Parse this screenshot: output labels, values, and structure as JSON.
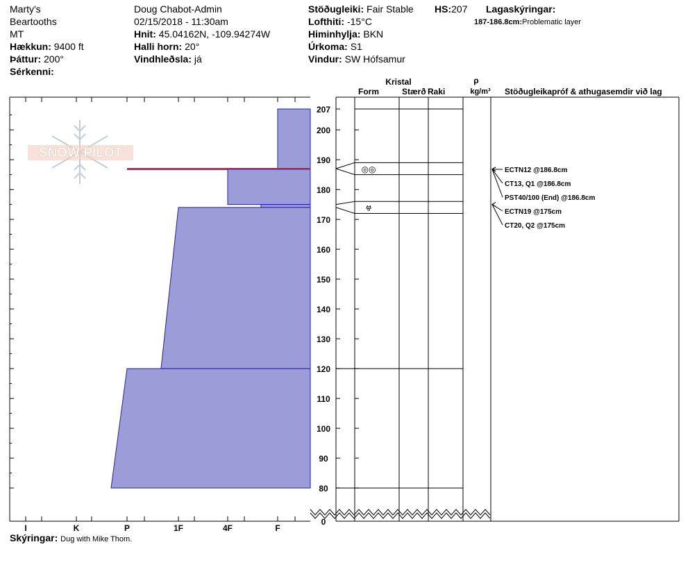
{
  "header": {
    "col1": [
      "Marty's",
      "Beartooths",
      "MT"
    ],
    "elevation": {
      "label": "Hækkun:",
      "value": "9400 ft"
    },
    "aspect": {
      "label": "Þáttur:",
      "value": "200°"
    },
    "specifics": {
      "label": "Sérkenni:",
      "value": ""
    },
    "observer": "Doug Chabot-Admin",
    "datetime": "02/15/2018 - 11:30am",
    "coords": {
      "label": "Hnit:",
      "value": "45.04162N, -109.94274W"
    },
    "slope": {
      "label": "Halli horn:",
      "value": "20°"
    },
    "wind_loading": {
      "label": "Vindhleðsla:",
      "value": "já"
    },
    "stability": {
      "label": "Stöðugleiki:",
      "value": "Fair Stable"
    },
    "hs": {
      "label": "HS:",
      "value": "207"
    },
    "air_temp": {
      "label": "Lofthiti:",
      "value": "-15°C"
    },
    "sky": {
      "label": "Himinhylja:",
      "value": "BKN"
    },
    "precip": {
      "label": "Úrkoma:",
      "value": "S1"
    },
    "wind": {
      "label": "Vindur:",
      "value": "SW Hófsamur"
    },
    "layer_notes": {
      "label": "Lagaskýringar:",
      "range": "187-186.8cm:",
      "text": "Problematic layer"
    },
    "comments": {
      "label": "Skýringar:",
      "value": "Dug with Mike Thom."
    }
  },
  "columns": {
    "crystal": "Kristal",
    "form": "Form",
    "size": "Stærð",
    "moisture": "Raki",
    "rho": "ρ",
    "density_unit": "kg/m³",
    "tests_title": "Stöðugleikapróf & athugasemdir við lag"
  },
  "logo_text": "SNOW PILOT",
  "chart_data": {
    "type": "area",
    "hardness_ticks": [
      "I",
      "K",
      "P",
      "1F",
      "4F",
      "F"
    ],
    "depth_ticks": [
      207,
      200,
      190,
      180,
      170,
      160,
      150,
      140,
      130,
      120,
      110,
      100,
      90,
      80,
      0
    ],
    "depth_range": [
      0,
      207
    ],
    "axis_break_below": 80,
    "hardness_layers": [
      {
        "top": 207,
        "bottom": 187,
        "hardness_top": "F",
        "hardness_bottom": "F"
      },
      {
        "top": 187,
        "bottom": 186.8,
        "hardness_top": "P",
        "hardness_bottom": "P",
        "problematic": true
      },
      {
        "top": 186.8,
        "bottom": 175,
        "hardness_top": "4F",
        "hardness_bottom": "4F"
      },
      {
        "top": 175,
        "bottom": 174,
        "hardness_top": "4F+",
        "hardness_bottom": "4F+"
      },
      {
        "top": 174,
        "bottom": 120,
        "hardness_top": "1F",
        "hardness_bottom": "1F-"
      },
      {
        "top": 120,
        "bottom": 80,
        "hardness_top": "P",
        "hardness_bottom": "P-"
      }
    ],
    "layer_boundaries": [
      207,
      189,
      185,
      176,
      172,
      120,
      80
    ],
    "grain_forms": [
      {
        "depth": 187,
        "symbol": "◎◎"
      },
      {
        "depth": 174,
        "symbol": "Ⱍ"
      }
    ],
    "stability_tests": [
      {
        "depth": 186.8,
        "text": "ECTN12 @186.8cm"
      },
      {
        "depth": 186.8,
        "text": "CT13, Q1 @186.8cm"
      },
      {
        "depth": 186.8,
        "text": "PST40/100 (End) @186.8cm"
      },
      {
        "depth": 175,
        "text": "ECTN19 @175cm"
      },
      {
        "depth": 175,
        "text": "CT20, Q2 @175cm"
      }
    ]
  }
}
